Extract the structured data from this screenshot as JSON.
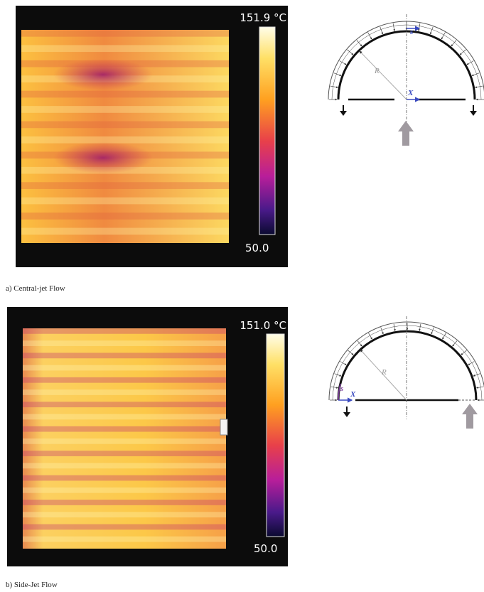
{
  "figures": [
    {
      "caption": "a) Central-jet Flow",
      "thermal": {
        "max_label": "151.9 °C",
        "min_label": "50.0"
      },
      "diagram": {
        "radius_label": "R",
        "s_label": "s",
        "x_label": "X"
      }
    },
    {
      "caption": "b) Side-Jet Flow",
      "thermal": {
        "max_label": "151.0 °C",
        "min_label": "50.0"
      },
      "diagram": {
        "radius_label": "R",
        "s_label": "s",
        "x_label": "X"
      }
    }
  ]
}
